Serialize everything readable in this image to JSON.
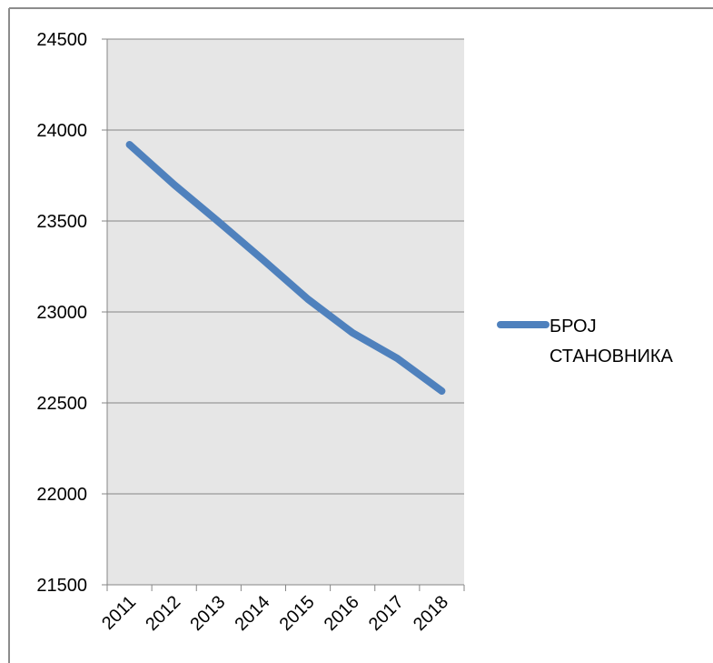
{
  "chart_data": {
    "type": "line",
    "categories": [
      "2011",
      "2012",
      "2013",
      "2014",
      "2015",
      "2016",
      "2017",
      "2018"
    ],
    "series": [
      {
        "name": "БРОЈ СТАНОВНИКА",
        "values": [
          23920,
          23700,
          23495,
          23285,
          23070,
          22885,
          22745,
          22565
        ],
        "color": "#4F81BD"
      }
    ],
    "y_ticks": [
      "21500",
      "22000",
      "22500",
      "23000",
      "23500",
      "24000",
      "24500"
    ],
    "ylim": [
      21500,
      24500
    ],
    "grid": true,
    "plot_background": "#E6E6E6",
    "legend_position": "right",
    "legend": {
      "line1": "БРОЈ",
      "line2": "СТАНОВНИКА"
    }
  }
}
